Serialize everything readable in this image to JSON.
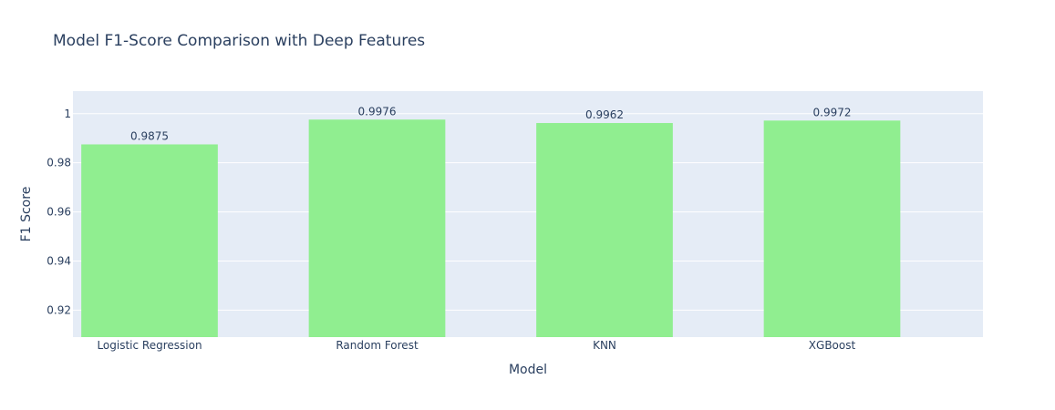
{
  "chart_data": {
    "type": "bar",
    "title": "Model F1-Score Comparison with Deep Features",
    "xlabel": "Model",
    "ylabel": "F1 Score",
    "categories": [
      "Logistic Regression",
      "Random Forest",
      "KNN",
      "XGBoost"
    ],
    "values": [
      0.9875,
      0.9976,
      0.9962,
      0.9972
    ],
    "data_labels": [
      "0.9875",
      "0.9976",
      "0.9962",
      "0.9972"
    ],
    "ylim": [
      0.909,
      1.0092
    ],
    "yticks": [
      0.92,
      0.94,
      0.96,
      0.98,
      1
    ],
    "ytick_labels": [
      "0.92",
      "0.94",
      "0.96",
      "0.98",
      "1"
    ],
    "grid": true,
    "colors": {
      "bar": "#90ee90",
      "plot_bg": "#e5ecf6",
      "grid": "#ffffff",
      "text": "#2a3f5f"
    }
  }
}
